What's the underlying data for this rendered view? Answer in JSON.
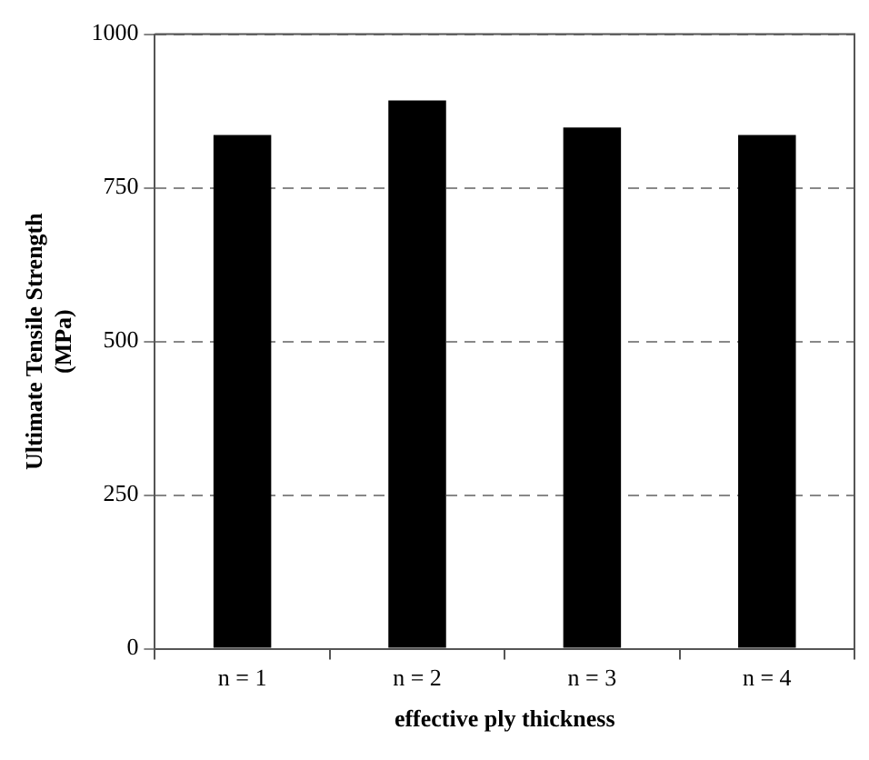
{
  "chart_data": {
    "type": "bar",
    "xlabel": "effective ply thickness",
    "ylabel": "Ultimate Tensile Strength (MPa)",
    "categories": [
      "n = 1",
      "n = 2",
      "n = 3",
      "n = 4"
    ],
    "values": [
      836,
      892,
      848,
      836
    ],
    "color": "#000000",
    "ylim": [
      0,
      1000
    ],
    "yticks": [
      0,
      250,
      500,
      750,
      1000
    ],
    "grid": "y",
    "legend": false
  }
}
